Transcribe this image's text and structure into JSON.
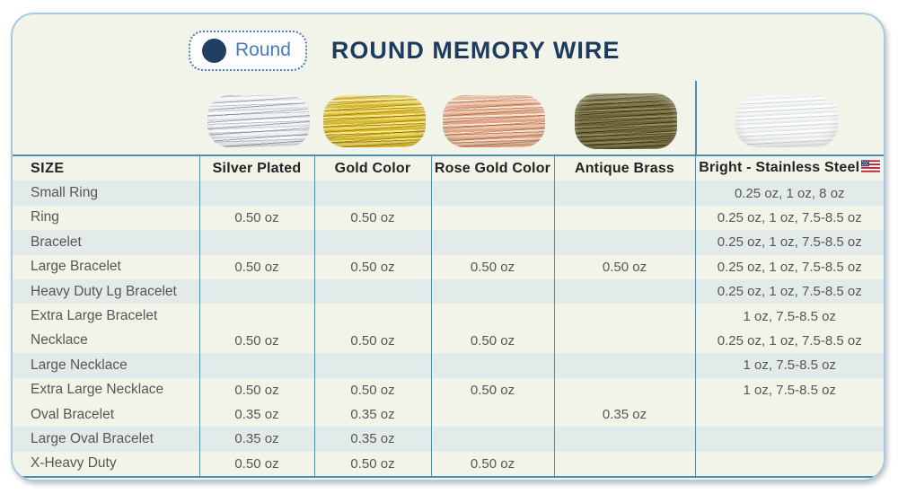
{
  "header": {
    "badge_label": "Round",
    "badge_icon": "filled-circle"
  },
  "colors": {
    "card_background": "#f2f4e9",
    "card_border": "#a9cade",
    "table_line_blue": "#4f8fae",
    "shaded_row": "#e3ebea",
    "title_navy": "#1c3b5e",
    "badge_blue": "#4a7ab8",
    "cell_text_gray": "#565656"
  },
  "chart_data": {
    "type": "table",
    "title": "ROUND MEMORY WIRE",
    "columns": [
      {
        "label": "SIZE"
      },
      {
        "label": "Silver Plated",
        "finish": "silver-plated"
      },
      {
        "label": "Gold Color",
        "finish": "gold-color"
      },
      {
        "label": "Rose Gold Color",
        "finish": "rose-gold-color"
      },
      {
        "label": "Antique Brass",
        "finish": "antique-brass"
      },
      {
        "label": "Bright - Stainless Steel",
        "finish": "bright-stainless-steel",
        "flag_icon": "us-flag-icon"
      }
    ],
    "rows": [
      {
        "shaded": true,
        "cells": [
          "Small Ring",
          "",
          "",
          "",
          "",
          "0.25 oz, 1 oz, 8 oz"
        ]
      },
      {
        "shaded": false,
        "cells": [
          "Ring",
          "0.50 oz",
          "0.50 oz",
          "",
          "",
          "0.25 oz, 1 oz, 7.5-8.5 oz"
        ]
      },
      {
        "shaded": true,
        "cells": [
          "Bracelet",
          "",
          "",
          "",
          "",
          "0.25 oz, 1 oz, 7.5-8.5 oz"
        ]
      },
      {
        "shaded": false,
        "cells": [
          "Large Bracelet",
          "0.50 oz",
          "0.50 oz",
          "0.50 oz",
          "0.50 oz",
          "0.25 oz, 1 oz, 7.5-8.5 oz"
        ]
      },
      {
        "shaded": true,
        "cells": [
          "Heavy Duty Lg Bracelet",
          "",
          "",
          "",
          "",
          "0.25 oz, 1 oz, 7.5-8.5 oz"
        ]
      },
      {
        "shaded": false,
        "cells": [
          "Extra Large Bracelet",
          "",
          "",
          "",
          "",
          "1 oz, 7.5-8.5 oz"
        ]
      },
      {
        "shaded": false,
        "cells": [
          "Necklace",
          "0.50 oz",
          "0.50 oz",
          "0.50 oz",
          "",
          "0.25 oz, 1 oz, 7.5-8.5 oz"
        ]
      },
      {
        "shaded": true,
        "cells": [
          "Large Necklace",
          "",
          "",
          "",
          "",
          "1 oz, 7.5-8.5 oz"
        ]
      },
      {
        "shaded": false,
        "cells": [
          "Extra Large Necklace",
          "0.50 oz",
          "0.50 oz",
          "0.50 oz",
          "",
          "1 oz, 7.5-8.5 oz"
        ]
      },
      {
        "shaded": false,
        "cells": [
          "Oval Bracelet",
          "0.35 oz",
          "0.35 oz",
          "",
          "0.35 oz",
          ""
        ]
      },
      {
        "shaded": true,
        "cells": [
          "Large Oval Bracelet",
          "0.35 oz",
          "0.35 oz",
          "",
          "",
          ""
        ]
      },
      {
        "shaded": false,
        "cells": [
          "X-Heavy Duty",
          "0.50 oz",
          "0.50 oz",
          "0.50 oz",
          "",
          ""
        ]
      }
    ]
  }
}
